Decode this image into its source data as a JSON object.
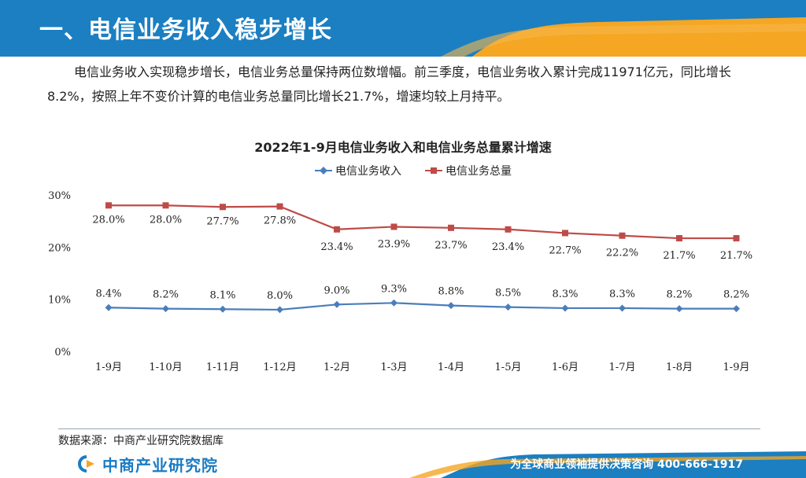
{
  "header": {
    "title": "一、电信业务收入稳步增长"
  },
  "intro": {
    "text": "电信业务收入实现稳步增长，电信业务总量保持两位数增幅。前三季度，电信业务收入累计完成11971亿元，同比增长8.2%，按照上年不变价计算的电信业务总量同比增长21.7%，增速均较上月持平。"
  },
  "chart_data": {
    "type": "line",
    "title": "2022年1-9月电信业务收入和电信业务总量累计增速",
    "categories": [
      "1-9月",
      "1-10月",
      "1-11月",
      "1-12月",
      "1-2月",
      "1-3月",
      "1-4月",
      "1-5月",
      "1-6月",
      "1-7月",
      "1-8月",
      "1-9月"
    ],
    "series": [
      {
        "name": "电信业务收入",
        "color": "#4a7ebb",
        "marker": "diamond",
        "values": [
          8.4,
          8.2,
          8.1,
          8.0,
          9.0,
          9.3,
          8.8,
          8.5,
          8.3,
          8.3,
          8.2,
          8.2
        ],
        "labels": [
          "8.4%",
          "8.2%",
          "8.1%",
          "8.0%",
          "9.0%",
          "9.3%",
          "8.8%",
          "8.5%",
          "8.3%",
          "8.3%",
          "8.2%",
          "8.2%"
        ]
      },
      {
        "name": "电信业务总量",
        "color": "#be4b48",
        "marker": "square",
        "values": [
          28.0,
          28.0,
          27.7,
          27.8,
          23.4,
          23.9,
          23.7,
          23.4,
          22.7,
          22.2,
          21.7,
          21.7
        ],
        "labels": [
          "28.0%",
          "28.0%",
          "27.7%",
          "27.8%",
          "23.4%",
          "23.9%",
          "23.7%",
          "23.4%",
          "22.7%",
          "22.2%",
          "21.7%",
          "21.7%"
        ]
      }
    ],
    "yticks": [
      "0%",
      "10%",
      "20%",
      "30%"
    ],
    "ylim": [
      0,
      30
    ],
    "legend": "top-center",
    "grid": false
  },
  "source": {
    "text": "数据来源：中商产业研究院数据库"
  },
  "footer": {
    "logo_text": "中商产业研究院",
    "slogan": "为全球商业领袖提供决策咨询   400-666-1917"
  },
  "colors": {
    "brand_blue": "#1a7bc4",
    "accent_orange": "#f5a623"
  }
}
